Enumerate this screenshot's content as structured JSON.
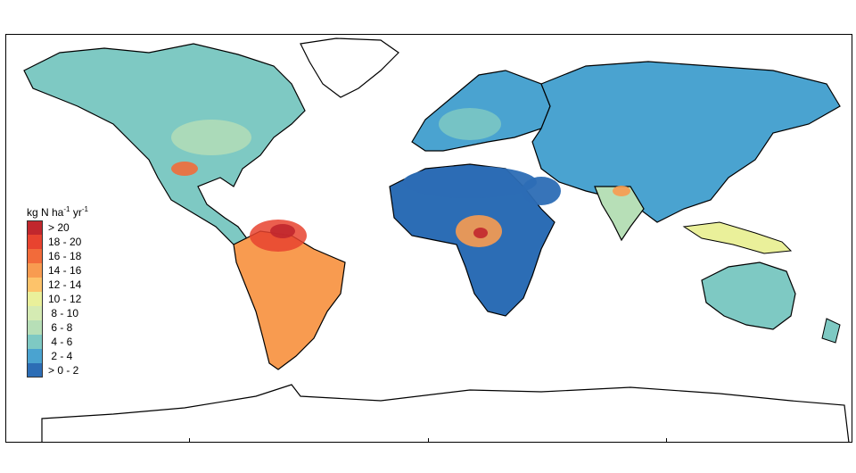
{
  "legend": {
    "title_base": "kg N ha",
    "title_exp1": "-1",
    "title_mid": " yr",
    "title_exp2": "-1",
    "items": [
      {
        "label": "> 20",
        "color": "#c1272d"
      },
      {
        "label": "18 - 20",
        "color": "#e8432f"
      },
      {
        "label": "16 - 18",
        "color": "#f26b3a"
      },
      {
        "label": "14 - 16",
        "color": "#f89b50"
      },
      {
        "label": "12 - 14",
        "color": "#fdc36a"
      },
      {
        "label": "10 - 12",
        "color": "#eaf09a"
      },
      {
        "label": " 8 - 10",
        "color": "#d5ebb3"
      },
      {
        "label": " 6 - 8",
        "color": "#b7dfb7"
      },
      {
        "label": " 4 - 6",
        "color": "#7ec9c3"
      },
      {
        "label": " 2 - 4",
        "color": "#4aa3d0"
      },
      {
        "label": "> 0 - 2",
        "color": "#2c6db5"
      }
    ]
  },
  "map": {
    "land_colors": {
      "background_land": "#7ec9c3",
      "boreal": "#4aa3d0",
      "desert": "#2c6db5",
      "temperate": "#b7dfb7",
      "tropical_high": "#f89b50",
      "tropical_peak": "#e8432f",
      "warm": "#fdc36a",
      "no_data": "#ffffff"
    },
    "coastline_color": "#000000"
  }
}
